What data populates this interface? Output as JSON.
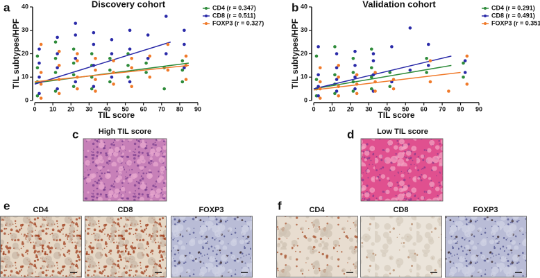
{
  "chart_data": [
    {
      "type": "scatter",
      "panel_label": "a",
      "title": "Discovery cohort",
      "xlabel": "TIL score",
      "ylabel": "TIL subtypes/HPF",
      "xlim": [
        0,
        90
      ],
      "xticks": [
        0,
        10,
        20,
        30,
        40,
        50,
        60,
        70,
        80,
        90
      ],
      "ylim": [
        0,
        40
      ],
      "yticks": [
        0,
        10,
        20,
        30,
        40
      ],
      "series": [
        {
          "name": "CD4 (r = 0.347)",
          "color": "#2e8b3a",
          "x": [
            1.5,
            1.5,
            1.5,
            1.5,
            11.5,
            11.5,
            11.5,
            11.5,
            21.5,
            21.5,
            21.5,
            21.5,
            31.5,
            31.5,
            31.5,
            31.5,
            41.5,
            41.5,
            41.5,
            51.5,
            51.5,
            51.5,
            61.5,
            61.5,
            71.5,
            71.5,
            81.5,
            81.5,
            81.5
          ],
          "values": [
            2,
            8,
            14,
            19,
            4,
            12,
            18,
            25,
            6,
            11,
            16,
            22,
            5,
            10,
            15,
            20,
            8,
            13,
            18,
            10,
            15,
            20,
            12,
            16,
            5,
            14,
            8,
            13,
            17
          ],
          "fit_x": [
            0,
            85
          ],
          "fit_y": [
            7.5,
            16
          ]
        },
        {
          "name": "CD8 (r = 0.511)",
          "color": "#2a2aa8",
          "x": [
            2.5,
            2.5,
            2.5,
            2.5,
            12.5,
            12.5,
            12.5,
            12.5,
            22.5,
            22.5,
            22.5,
            22.5,
            32.5,
            32.5,
            32.5,
            32.5,
            42.5,
            42.5,
            42.5,
            52.5,
            52.5,
            52.5,
            62.5,
            62.5,
            72.5,
            72.5,
            82.5,
            82.5,
            82.5
          ],
          "values": [
            3,
            10,
            16,
            22,
            5,
            14,
            20,
            27,
            8,
            18,
            28,
            33,
            6,
            15,
            24,
            29,
            10,
            20,
            26,
            8,
            22,
            30,
            18,
            28,
            20,
            36,
            14,
            24,
            30
          ],
          "fit_x": [
            0,
            75
          ],
          "fit_y": [
            7,
            25
          ]
        },
        {
          "name": "FOXP3 (r = 0.327)",
          "color": "#f07a2a",
          "x": [
            3.5,
            3.5,
            3.5,
            3.5,
            13.5,
            13.5,
            13.5,
            13.5,
            23.5,
            23.5,
            23.5,
            23.5,
            33.5,
            33.5,
            33.5,
            33.5,
            43.5,
            43.5,
            43.5,
            53.5,
            53.5,
            53.5,
            63.5,
            63.5,
            73.5,
            73.5,
            83.5,
            83.5,
            83.5
          ],
          "values": [
            1,
            7,
            12,
            24,
            3,
            9,
            15,
            21,
            5,
            10,
            17,
            20,
            4,
            9,
            13,
            18,
            7,
            12,
            17,
            6,
            14,
            18,
            10,
            19,
            13,
            24,
            9,
            15,
            19
          ],
          "fit_x": [
            0,
            85
          ],
          "fit_y": [
            8,
            15
          ]
        }
      ]
    },
    {
      "type": "scatter",
      "panel_label": "b",
      "title": "Validation cohort",
      "xlabel": "TIL score",
      "ylabel": "TIL subtypes/HPF",
      "xlim": [
        0,
        90
      ],
      "xticks": [
        0,
        10,
        20,
        30,
        40,
        50,
        60,
        70,
        80,
        90
      ],
      "ylim": [
        0,
        40
      ],
      "yticks": [
        0,
        10,
        20,
        30,
        40
      ],
      "series": [
        {
          "name": "CD4 (r = 0.291)",
          "color": "#2e8b3a",
          "x": [
            1.5,
            1.5,
            1.5,
            1.5,
            11.5,
            11.5,
            11.5,
            11.5,
            21.5,
            21.5,
            21.5,
            21.5,
            31.5,
            31.5,
            31.5,
            31.5,
            41.5,
            41.5,
            61.5,
            61.5,
            81.5,
            81.5
          ],
          "values": [
            2,
            5,
            9,
            19,
            3,
            7,
            11,
            23,
            4,
            8,
            12,
            18,
            5,
            10,
            14,
            22,
            6,
            12,
            12,
            18,
            10,
            16
          ],
          "fit_x": [
            0,
            75
          ],
          "fit_y": [
            5,
            15
          ]
        },
        {
          "name": "CD8 (r = 0.491)",
          "color": "#2a2aa8",
          "x": [
            2.5,
            2.5,
            2.5,
            2.5,
            12.5,
            12.5,
            12.5,
            12.5,
            22.5,
            22.5,
            22.5,
            22.5,
            32.5,
            32.5,
            32.5,
            32.5,
            42.5,
            42.5,
            52.5,
            52.5,
            62.5,
            62.5,
            82.5,
            82.5
          ],
          "values": [
            2,
            6,
            11,
            23,
            4,
            9,
            14,
            20,
            5,
            10,
            15,
            21,
            4,
            11,
            17,
            20,
            8,
            23,
            31,
            13,
            15,
            24,
            12,
            17
          ],
          "fit_x": [
            0,
            75
          ],
          "fit_y": [
            5,
            19
          ]
        },
        {
          "name": "FOXP3 (r = 0.351)",
          "color": "#f07a2a",
          "x": [
            3.5,
            3.5,
            3.5,
            3.5,
            13.5,
            13.5,
            13.5,
            13.5,
            23.5,
            23.5,
            23.5,
            33.5,
            33.5,
            33.5,
            43.5,
            43.5,
            63.5,
            63.5,
            73.5,
            83.5,
            83.5
          ],
          "values": [
            1,
            5,
            8,
            14,
            2,
            6,
            10,
            15,
            3,
            7,
            11,
            4,
            8,
            12,
            5,
            9,
            8,
            17,
            4,
            7,
            19
          ],
          "fit_x": [
            0,
            80
          ],
          "fit_y": [
            4.5,
            12
          ]
        }
      ]
    }
  ],
  "histology": [
    {
      "label": "c",
      "caption": "High TIL score"
    },
    {
      "label": "d",
      "caption": "Low TIL score"
    }
  ],
  "ihc": [
    {
      "label": "e",
      "stains": [
        "CD4",
        "CD8",
        "FOXP3"
      ]
    },
    {
      "label": "f",
      "stains": [
        "CD4",
        "CD8",
        "FOXP3"
      ]
    }
  ]
}
